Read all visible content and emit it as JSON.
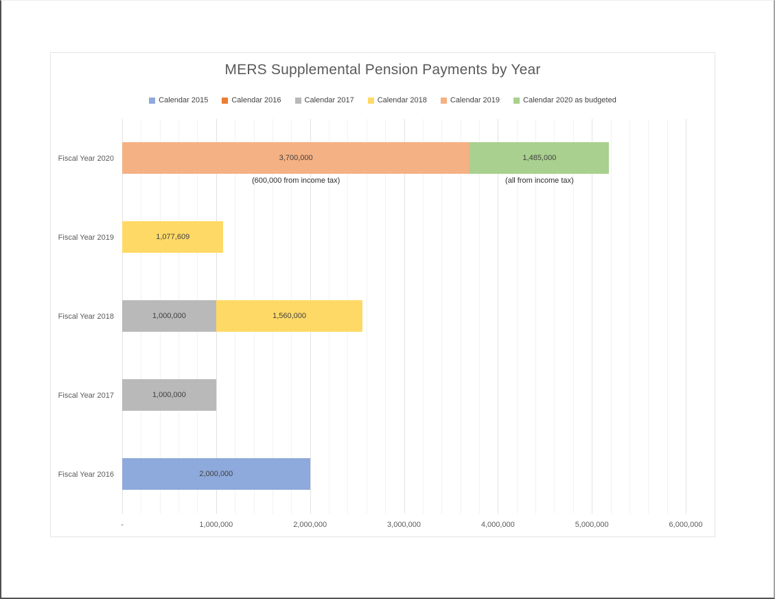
{
  "page": {
    "background": "#ffffff"
  },
  "chart_data": {
    "type": "bar",
    "orientation": "horizontal",
    "stacked": true,
    "title": "MERS Supplemental Pension Payments by Year",
    "legend_position": "top",
    "grid": "on",
    "categories": [
      "Fiscal Year 2020",
      "Fiscal Year 2019",
      "Fiscal Year 2018",
      "Fiscal Year 2017",
      "Fiscal Year 2016"
    ],
    "series": [
      {
        "name": "Calendar 2015",
        "color": "#8EA9DB",
        "values": [
          0,
          0,
          0,
          0,
          2000000
        ]
      },
      {
        "name": "Calendar 2016",
        "color": "#ED7D31",
        "values": [
          0,
          0,
          0,
          0,
          0
        ]
      },
      {
        "name": "Calendar 2017",
        "color": "#B9B9B9",
        "values": [
          0,
          0,
          1000000,
          1000000,
          0
        ]
      },
      {
        "name": "Calendar 2018",
        "color": "#FFD966",
        "values": [
          0,
          1077609,
          1560000,
          0,
          0
        ]
      },
      {
        "name": "Calendar 2019",
        "color": "#F4B183",
        "values": [
          3700000,
          0,
          0,
          0,
          0
        ]
      },
      {
        "name": "Calendar 2020 as budgeted",
        "color": "#A9D08E",
        "values": [
          1485000,
          0,
          0,
          0,
          0
        ]
      }
    ],
    "bar_value_labels": [
      "3,700,000",
      "1,485,000",
      "1,077,609",
      "1,000,000",
      "1,560,000",
      "1,000,000",
      "2,000,000"
    ],
    "xlim": [
      0,
      6000000
    ],
    "x_ticks": [
      {
        "value": 0,
        "label": "-"
      },
      {
        "value": 1000000,
        "label": "1,000,000"
      },
      {
        "value": 2000000,
        "label": "2,000,000"
      },
      {
        "value": 3000000,
        "label": "3,000,000"
      },
      {
        "value": 4000000,
        "label": "4,000,000"
      },
      {
        "value": 5000000,
        "label": "5,000,000"
      },
      {
        "value": 6000000,
        "label": "6,000,000"
      }
    ],
    "gridlines": {
      "major_interval": 1000000,
      "minor_interval": 200000
    },
    "annotations": [
      {
        "text": "(600,000 from income tax)",
        "category": "Fiscal Year 2020",
        "series": "Calendar 2019"
      },
      {
        "text": "(all from income tax)",
        "category": "Fiscal Year 2020",
        "series": "Calendar 2020 as budgeted"
      }
    ],
    "colors": {
      "title_text": "#595959",
      "axis_text": "#595959",
      "legend_text": "#404040",
      "bar_label_text": "#3F3F3F",
      "annotation_text": "#2B2B2B"
    }
  }
}
